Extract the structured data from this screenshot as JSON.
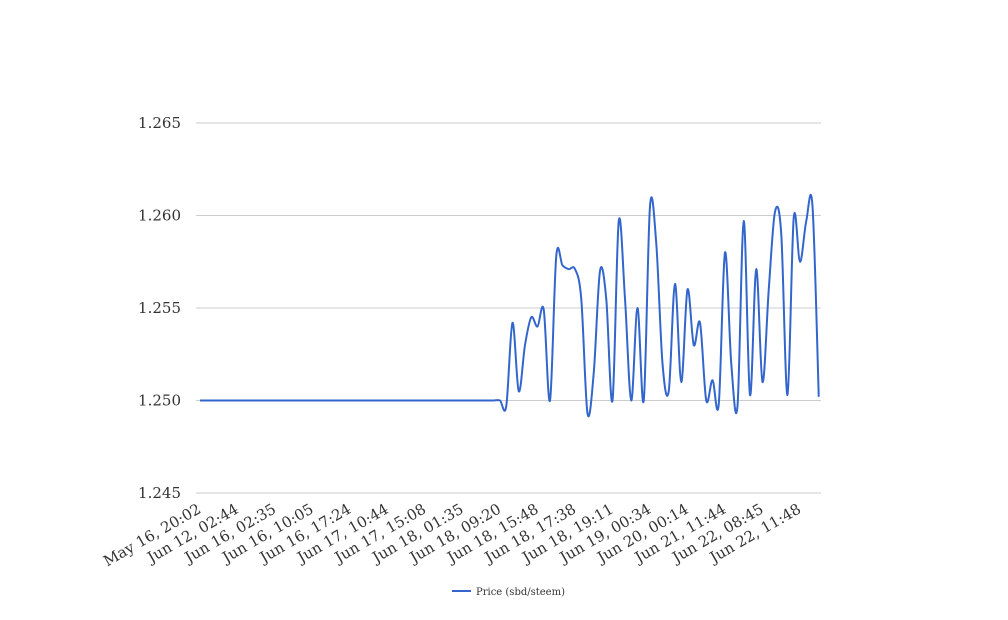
{
  "chart_data": {
    "type": "line",
    "categories": [
      "May 16, 20:02",
      null,
      null,
      null,
      null,
      null,
      "Jun 12, 02:44",
      null,
      null,
      null,
      null,
      null,
      "Jun 16, 02:35",
      null,
      null,
      null,
      null,
      null,
      "Jun 16, 10:05",
      null,
      null,
      null,
      null,
      null,
      "Jun 16, 17:24",
      null,
      null,
      null,
      null,
      null,
      "Jun 17, 10:44",
      null,
      null,
      null,
      null,
      null,
      "Jun 17, 15:08",
      null,
      null,
      null,
      null,
      null,
      "Jun 18, 01:35",
      null,
      null,
      null,
      null,
      null,
      "Jun 18, 09:20",
      null,
      null,
      null,
      null,
      null,
      "Jun 18, 15:48",
      null,
      null,
      null,
      null,
      null,
      "Jun 18, 17:38",
      null,
      null,
      null,
      null,
      null,
      "Jun 18, 19:11",
      null,
      null,
      null,
      null,
      null,
      "Jun 19, 00:34",
      null,
      null,
      null,
      null,
      null,
      "Jun 20, 00:14",
      null,
      null,
      null,
      null,
      null,
      "Jun 21, 11:44",
      null,
      null,
      null,
      null,
      null,
      "Jun 22, 08:45",
      null,
      null,
      null,
      null,
      null,
      "Jun 22, 11:48",
      null,
      null,
      null
    ],
    "series": [
      {
        "name": "Price (sbd/steem)",
        "color": "#3366cc",
        "values": [
          1.25,
          1.25,
          1.25,
          1.25,
          1.25,
          1.25,
          1.25,
          1.25,
          1.25,
          1.25,
          1.25,
          1.25,
          1.25,
          1.25,
          1.25,
          1.25,
          1.25,
          1.25,
          1.25,
          1.25,
          1.25,
          1.25,
          1.25,
          1.25,
          1.25,
          1.25,
          1.25,
          1.25,
          1.25,
          1.25,
          1.25,
          1.25,
          1.25,
          1.25,
          1.25,
          1.25,
          1.25,
          1.25,
          1.25,
          1.25,
          1.25,
          1.25,
          1.25,
          1.25,
          1.25,
          1.25,
          1.25,
          1.25,
          1.25,
          1.2497,
          1.2542,
          1.2505,
          1.253,
          1.2545,
          1.254,
          1.2549,
          1.25,
          1.2578,
          1.2573,
          1.2571,
          1.2571,
          1.2555,
          1.2493,
          1.2515,
          1.257,
          1.2555,
          1.25,
          1.2597,
          1.2555,
          1.25,
          1.255,
          1.25,
          1.2605,
          1.2585,
          1.252,
          1.2505,
          1.2563,
          1.251,
          1.256,
          1.253,
          1.2542,
          1.25,
          1.2511,
          1.2498,
          1.258,
          1.252,
          1.2497,
          1.2597,
          1.2503,
          1.2571,
          1.251,
          1.256,
          1.2602,
          1.259,
          1.2503,
          1.2599,
          1.2575,
          1.2597,
          1.2605,
          1.2502
        ]
      }
    ],
    "ylim": [
      1.245,
      1.265
    ],
    "yticks": [
      1.265,
      {
        "value": 1.26,
        "label": "1.260"
      },
      1.255,
      {
        "value": 1.25,
        "label": "1.250"
      },
      1.245
    ],
    "grid": true,
    "legend": "bottom"
  }
}
